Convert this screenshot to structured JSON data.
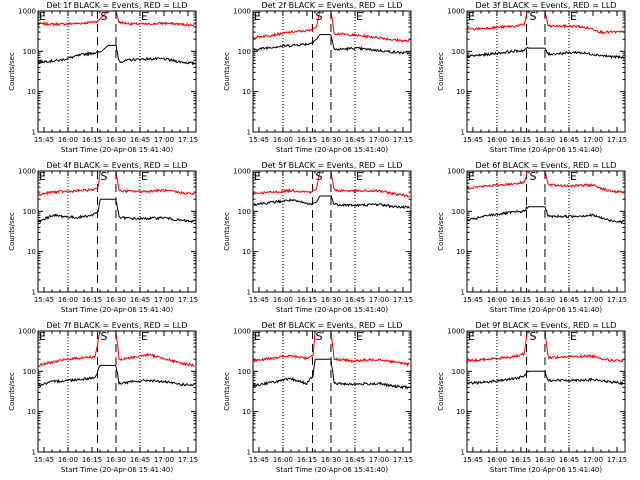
{
  "figure": {
    "start_time_label": "Start Time (20-Apr-06 15:41:40)",
    "y_axis_label": "Counts/sec",
    "x_tick_labels": [
      "15:45",
      "16:00",
      "16:15",
      "16:30",
      "16:45",
      "17:00",
      "17:15"
    ],
    "y_tick_labels": [
      "1",
      "10",
      "100",
      "1000"
    ],
    "markers": {
      "start": "E",
      "mid": "S",
      "end": "E"
    },
    "colors": {
      "events": "#000000",
      "lld": "#ff0000",
      "background": "#ffffff"
    }
  },
  "chart_data": [
    {
      "type": "line",
      "title": "Det 1f BLACK = Events, RED = LLD",
      "xlabel": "Start Time (20-Apr-06 15:41:40)",
      "ylabel": "Counts/sec",
      "yscale": "log",
      "ylim": [
        1,
        1000
      ],
      "x_range_minutes": [
        -3.7,
        95.0
      ],
      "x_unit": "minutes after 15:45",
      "series": [
        {
          "points": [
            [
              -3,
              480
            ],
            [
              10,
              470
            ],
            [
              25,
              500
            ],
            [
              34,
              560
            ],
            [
              36,
              700
            ],
            [
              40,
              1000
            ],
            [
              45,
              1000
            ],
            [
              47,
              520
            ],
            [
              55,
              480
            ],
            [
              65,
              470
            ],
            [
              75,
              500
            ],
            [
              85,
              470
            ],
            [
              94,
              450
            ]
          ]
        },
        {
          "points": [
            [
              -3,
              55
            ],
            [
              10,
              60
            ],
            [
              25,
              85
            ],
            [
              34,
              95
            ],
            [
              36,
              100
            ],
            [
              40,
              140
            ],
            [
              45,
              140
            ],
            [
              47,
              55
            ],
            [
              55,
              62
            ],
            [
              65,
              65
            ],
            [
              75,
              65
            ],
            [
              85,
              55
            ],
            [
              94,
              50
            ]
          ]
        }
      ]
    },
    {
      "type": "line",
      "title": "Det 2f BLACK = Events, RED = LLD",
      "xlabel": "Start Time (20-Apr-06 15:41:40)",
      "ylabel": "Counts/sec",
      "yscale": "log",
      "ylim": [
        1,
        1000
      ],
      "x_range_minutes": [
        -3.7,
        95.0
      ],
      "x_unit": "minutes after 15:45",
      "series": [
        {
          "points": [
            [
              -3,
              220
            ],
            [
              10,
              260
            ],
            [
              20,
              300
            ],
            [
              32,
              330
            ],
            [
              36,
              400
            ],
            [
              38,
              1000
            ],
            [
              45,
              1000
            ],
            [
              47,
              280
            ],
            [
              60,
              250
            ],
            [
              75,
              220
            ],
            [
              85,
              190
            ],
            [
              94,
              180
            ]
          ]
        },
        {
          "points": [
            [
              -3,
              110
            ],
            [
              10,
              130
            ],
            [
              20,
              140
            ],
            [
              32,
              155
            ],
            [
              36,
              200
            ],
            [
              38,
              260
            ],
            [
              45,
              260
            ],
            [
              47,
              110
            ],
            [
              60,
              120
            ],
            [
              75,
              105
            ],
            [
              85,
              95
            ],
            [
              94,
              90
            ]
          ]
        }
      ]
    },
    {
      "type": "line",
      "title": "Det 3f BLACK = Events, RED = LLD",
      "xlabel": "Start Time (20-Apr-06 15:41:40)",
      "ylabel": "Counts/sec",
      "yscale": "log",
      "ylim": [
        1,
        1000
      ],
      "x_range_minutes": [
        -3.7,
        95.0
      ],
      "x_unit": "minutes after 15:45",
      "series": [
        {
          "points": [
            [
              -3,
              350
            ],
            [
              10,
              380
            ],
            [
              25,
              420
            ],
            [
              32,
              450
            ],
            [
              34,
              1000
            ],
            [
              45,
              1000
            ],
            [
              47,
              420
            ],
            [
              65,
              420
            ],
            [
              75,
              360
            ],
            [
              80,
              300
            ],
            [
              94,
              300
            ]
          ]
        },
        {
          "points": [
            [
              -3,
              75
            ],
            [
              10,
              85
            ],
            [
              25,
              100
            ],
            [
              32,
              105
            ],
            [
              34,
              120
            ],
            [
              45,
              120
            ],
            [
              47,
              85
            ],
            [
              65,
              95
            ],
            [
              75,
              85
            ],
            [
              85,
              75
            ],
            [
              94,
              70
            ]
          ]
        }
      ]
    },
    {
      "type": "line",
      "title": "Det 4f BLACK = Events, RED = LLD",
      "xlabel": "Start Time (20-Apr-06 15:41:40)",
      "ylabel": "Counts/sec",
      "yscale": "log",
      "ylim": [
        1,
        1000
      ],
      "x_range_minutes": [
        -3.7,
        95.0
      ],
      "x_unit": "minutes after 15:45",
      "series": [
        {
          "points": [
            [
              -3,
              260
            ],
            [
              5,
              300
            ],
            [
              20,
              320
            ],
            [
              30,
              340
            ],
            [
              34,
              400
            ],
            [
              35,
              1000
            ],
            [
              45,
              1000
            ],
            [
              47,
              320
            ],
            [
              60,
              310
            ],
            [
              75,
              330
            ],
            [
              85,
              290
            ],
            [
              94,
              270
            ]
          ]
        },
        {
          "points": [
            [
              -3,
              55
            ],
            [
              5,
              80
            ],
            [
              20,
              70
            ],
            [
              30,
              80
            ],
            [
              34,
              100
            ],
            [
              35,
              200
            ],
            [
              45,
              200
            ],
            [
              47,
              70
            ],
            [
              60,
              65
            ],
            [
              75,
              70
            ],
            [
              85,
              60
            ],
            [
              94,
              55
            ]
          ]
        }
      ]
    },
    {
      "type": "line",
      "title": "Det 5f BLACK = Events, RED = LLD",
      "xlabel": "Start Time (20-Apr-06 15:41:40)",
      "ylabel": "Counts/sec",
      "yscale": "log",
      "ylim": [
        1,
        1000
      ],
      "x_range_minutes": [
        -3.7,
        95.0
      ],
      "x_unit": "minutes after 15:45",
      "series": [
        {
          "points": [
            [
              -3,
              280
            ],
            [
              10,
              300
            ],
            [
              20,
              330
            ],
            [
              32,
              300
            ],
            [
              36,
              350
            ],
            [
              38,
              1000
            ],
            [
              45,
              1000
            ],
            [
              47,
              330
            ],
            [
              60,
              320
            ],
            [
              75,
              320
            ],
            [
              85,
              270
            ],
            [
              94,
              240
            ]
          ]
        },
        {
          "points": [
            [
              -3,
              150
            ],
            [
              10,
              170
            ],
            [
              20,
              190
            ],
            [
              32,
              150
            ],
            [
              36,
              170
            ],
            [
              38,
              240
            ],
            [
              45,
              240
            ],
            [
              47,
              150
            ],
            [
              60,
              140
            ],
            [
              75,
              150
            ],
            [
              85,
              130
            ],
            [
              94,
              125
            ]
          ]
        }
      ]
    },
    {
      "type": "line",
      "title": "Det 6f BLACK = Events, RED = LLD",
      "xlabel": "Start Time (20-Apr-06 15:41:40)",
      "ylabel": "Counts/sec",
      "yscale": "log",
      "ylim": [
        1,
        1000
      ],
      "x_range_minutes": [
        -3.7,
        95.0
      ],
      "x_unit": "minutes after 15:45",
      "series": [
        {
          "points": [
            [
              -3,
              380
            ],
            [
              10,
              430
            ],
            [
              25,
              480
            ],
            [
              32,
              520
            ],
            [
              34,
              1000
            ],
            [
              45,
              1000
            ],
            [
              47,
              450
            ],
            [
              60,
              430
            ],
            [
              75,
              450
            ],
            [
              85,
              320
            ],
            [
              94,
              300
            ]
          ]
        },
        {
          "points": [
            [
              -3,
              60
            ],
            [
              10,
              80
            ],
            [
              25,
              95
            ],
            [
              32,
              100
            ],
            [
              34,
              130
            ],
            [
              45,
              130
            ],
            [
              47,
              75
            ],
            [
              60,
              75
            ],
            [
              75,
              80
            ],
            [
              85,
              60
            ],
            [
              94,
              55
            ]
          ]
        }
      ]
    },
    {
      "type": "line",
      "title": "Det 7f BLACK = Events, RED = LLD",
      "xlabel": "Start Time (20-Apr-06 15:41:40)",
      "ylabel": "Counts/sec",
      "yscale": "log",
      "ylim": [
        1,
        1000
      ],
      "x_range_minutes": [
        -3.7,
        95.0
      ],
      "x_unit": "minutes after 15:45",
      "series": [
        {
          "points": [
            [
              -3,
              140
            ],
            [
              5,
              170
            ],
            [
              15,
              200
            ],
            [
              25,
              220
            ],
            [
              32,
              230
            ],
            [
              35,
              1000
            ],
            [
              45,
              1000
            ],
            [
              47,
              190
            ],
            [
              55,
              220
            ],
            [
              65,
              260
            ],
            [
              75,
              210
            ],
            [
              85,
              160
            ],
            [
              94,
              140
            ]
          ]
        },
        {
          "points": [
            [
              -3,
              45
            ],
            [
              5,
              55
            ],
            [
              15,
              60
            ],
            [
              25,
              65
            ],
            [
              32,
              70
            ],
            [
              35,
              140
            ],
            [
              45,
              140
            ],
            [
              47,
              50
            ],
            [
              55,
              55
            ],
            [
              65,
              60
            ],
            [
              75,
              55
            ],
            [
              85,
              48
            ],
            [
              94,
              45
            ]
          ]
        }
      ]
    },
    {
      "type": "line",
      "title": "Det 8f BLACK = Events, RED = LLD",
      "xlabel": "Start Time (20-Apr-06 15:41:40)",
      "ylabel": "Counts/sec",
      "yscale": "log",
      "ylim": [
        1,
        1000
      ],
      "x_range_minutes": [
        -3.7,
        95.0
      ],
      "x_unit": "minutes after 15:45",
      "series": [
        {
          "points": [
            [
              -3,
              180
            ],
            [
              10,
              220
            ],
            [
              20,
              240
            ],
            [
              30,
              210
            ],
            [
              34,
              260
            ],
            [
              35,
              1000
            ],
            [
              45,
              1000
            ],
            [
              47,
              200
            ],
            [
              60,
              180
            ],
            [
              75,
              200
            ],
            [
              85,
              170
            ],
            [
              94,
              150
            ]
          ]
        },
        {
          "points": [
            [
              -3,
              45
            ],
            [
              10,
              55
            ],
            [
              20,
              65
            ],
            [
              30,
              50
            ],
            [
              34,
              80
            ],
            [
              35,
              200
            ],
            [
              45,
              200
            ],
            [
              47,
              50
            ],
            [
              60,
              48
            ],
            [
              75,
              50
            ],
            [
              85,
              42
            ],
            [
              94,
              40
            ]
          ]
        }
      ]
    },
    {
      "type": "line",
      "title": "Det 9f BLACK = Events, RED = LLD",
      "xlabel": "Start Time (20-Apr-06 15:41:40)",
      "ylabel": "Counts/sec",
      "yscale": "log",
      "ylim": [
        1,
        1000
      ],
      "x_range_minutes": [
        -3.7,
        95.0
      ],
      "x_unit": "minutes after 15:45",
      "series": [
        {
          "points": [
            [
              -3,
              180
            ],
            [
              10,
              200
            ],
            [
              25,
              230
            ],
            [
              32,
              270
            ],
            [
              34,
              1000
            ],
            [
              45,
              1000
            ],
            [
              47,
              220
            ],
            [
              60,
              230
            ],
            [
              75,
              240
            ],
            [
              85,
              190
            ],
            [
              94,
              180
            ]
          ]
        },
        {
          "points": [
            [
              -3,
              50
            ],
            [
              10,
              55
            ],
            [
              25,
              65
            ],
            [
              32,
              75
            ],
            [
              34,
              100
            ],
            [
              45,
              100
            ],
            [
              47,
              60
            ],
            [
              60,
              60
            ],
            [
              75,
              62
            ],
            [
              85,
              55
            ],
            [
              94,
              50
            ]
          ]
        }
      ]
    }
  ]
}
